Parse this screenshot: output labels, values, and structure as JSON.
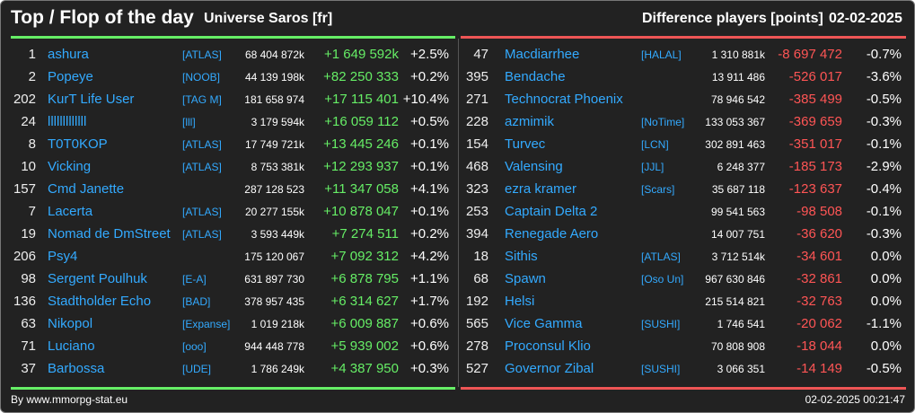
{
  "header": {
    "title": "Top / Flop of the day",
    "universe": "Universe Saros [fr]",
    "metric": "Difference players [points]",
    "date": "02-02-2025"
  },
  "colors": {
    "background": "#222222",
    "link": "#33aaff",
    "positive": "#66ee66",
    "negative": "#ff5555"
  },
  "top": [
    {
      "rank": "1",
      "name": "ashura",
      "alliance": "[ATLAS]",
      "score": "68 404 872k",
      "diff": "+1 649 592k",
      "pct": "+2.5%"
    },
    {
      "rank": "2",
      "name": "Popeye",
      "alliance": "[NOOB]",
      "score": "44 139 198k",
      "diff": "+82 250 333",
      "pct": "+0.2%"
    },
    {
      "rank": "202",
      "name": "KurT Life User",
      "alliance": "[TAG M]",
      "score": "181 658 974",
      "diff": "+17 115 401",
      "pct": "+10.4%"
    },
    {
      "rank": "24",
      "name": "lllllllllllll",
      "alliance": "[lll]",
      "score": "3 179 594k",
      "diff": "+16 059 112",
      "pct": "+0.5%"
    },
    {
      "rank": "8",
      "name": "T0T0KOP",
      "alliance": "[ATLAS]",
      "score": "17 749 721k",
      "diff": "+13 445 246",
      "pct": "+0.1%"
    },
    {
      "rank": "10",
      "name": "Vicking",
      "alliance": "[ATLAS]",
      "score": "8 753 381k",
      "diff": "+12 293 937",
      "pct": "+0.1%"
    },
    {
      "rank": "157",
      "name": "Cmd Janette",
      "alliance": "",
      "score": "287 128 523",
      "diff": "+11 347 058",
      "pct": "+4.1%"
    },
    {
      "rank": "7",
      "name": "Lacerta",
      "alliance": "[ATLAS]",
      "score": "20 277 155k",
      "diff": "+10 878 047",
      "pct": "+0.1%"
    },
    {
      "rank": "19",
      "name": "Nomad de DmStreet",
      "alliance": "[ATLAS]",
      "score": "3 593 449k",
      "diff": "+7 274 511",
      "pct": "+0.2%"
    },
    {
      "rank": "206",
      "name": "Psy4",
      "alliance": "",
      "score": "175 120 067",
      "diff": "+7 092 312",
      "pct": "+4.2%"
    },
    {
      "rank": "98",
      "name": "Sergent Poulhuk",
      "alliance": "[E-A]",
      "score": "631 897 730",
      "diff": "+6 878 795",
      "pct": "+1.1%"
    },
    {
      "rank": "136",
      "name": "Stadtholder Echo",
      "alliance": "[BAD]",
      "score": "378 957 435",
      "diff": "+6 314 627",
      "pct": "+1.7%"
    },
    {
      "rank": "63",
      "name": "Nikopol",
      "alliance": "[Expanse]",
      "score": "1 019 218k",
      "diff": "+6 009 887",
      "pct": "+0.6%"
    },
    {
      "rank": "71",
      "name": "Luciano",
      "alliance": "[ooo]",
      "score": "944 448 778",
      "diff": "+5 939 002",
      "pct": "+0.6%"
    },
    {
      "rank": "37",
      "name": "Barbossa",
      "alliance": "[UDE]",
      "score": "1 786 249k",
      "diff": "+4 387 950",
      "pct": "+0.3%"
    }
  ],
  "flop": [
    {
      "rank": "47",
      "name": "Macdiarrhee",
      "alliance": "[HALAL]",
      "score": "1 310 881k",
      "diff": "-8 697 472",
      "pct": "-0.7%"
    },
    {
      "rank": "395",
      "name": "Bendache",
      "alliance": "",
      "score": "13 911 486",
      "diff": "-526 017",
      "pct": "-3.6%"
    },
    {
      "rank": "271",
      "name": "Technocrat Phoenix",
      "alliance": "",
      "score": "78 946 542",
      "diff": "-385 499",
      "pct": "-0.5%"
    },
    {
      "rank": "228",
      "name": "azmimik",
      "alliance": "[NoTime]",
      "score": "133 053 367",
      "diff": "-369 659",
      "pct": "-0.3%"
    },
    {
      "rank": "154",
      "name": "Turvec",
      "alliance": "[LCN]",
      "score": "302 891 463",
      "diff": "-351 017",
      "pct": "-0.1%"
    },
    {
      "rank": "468",
      "name": "Valensing",
      "alliance": "[JJL]",
      "score": "6 248 377",
      "diff": "-185 173",
      "pct": "-2.9%"
    },
    {
      "rank": "323",
      "name": "ezra kramer",
      "alliance": "[Scars]",
      "score": "35 687 118",
      "diff": "-123 637",
      "pct": "-0.4%"
    },
    {
      "rank": "253",
      "name": "Captain Delta 2",
      "alliance": "",
      "score": "99 541 563",
      "diff": "-98 508",
      "pct": "-0.1%"
    },
    {
      "rank": "394",
      "name": "Renegade Aero",
      "alliance": "",
      "score": "14 007 751",
      "diff": "-36 620",
      "pct": "-0.3%"
    },
    {
      "rank": "18",
      "name": "Sithis",
      "alliance": "[ATLAS]",
      "score": "3 712 514k",
      "diff": "-34 601",
      "pct": "0.0%"
    },
    {
      "rank": "68",
      "name": "Spawn",
      "alliance": "[Oso Un]",
      "score": "967 630 846",
      "diff": "-32 861",
      "pct": "0.0%"
    },
    {
      "rank": "192",
      "name": "Helsi",
      "alliance": "",
      "score": "215 514 821",
      "diff": "-32 763",
      "pct": "0.0%"
    },
    {
      "rank": "565",
      "name": "Vice Gamma",
      "alliance": "[SUSHI]",
      "score": "1 746 541",
      "diff": "-20 062",
      "pct": "-1.1%"
    },
    {
      "rank": "278",
      "name": "Proconsul Klio",
      "alliance": "",
      "score": "70 808 908",
      "diff": "-18 044",
      "pct": "0.0%"
    },
    {
      "rank": "527",
      "name": "Governor Zibal",
      "alliance": "[SUSHI]",
      "score": "3 066 351",
      "diff": "-14 149",
      "pct": "-0.5%"
    }
  ],
  "footer": {
    "credit": "By www.mmorpg-stat.eu",
    "timestamp": "02-02-2025 00:21:47"
  }
}
